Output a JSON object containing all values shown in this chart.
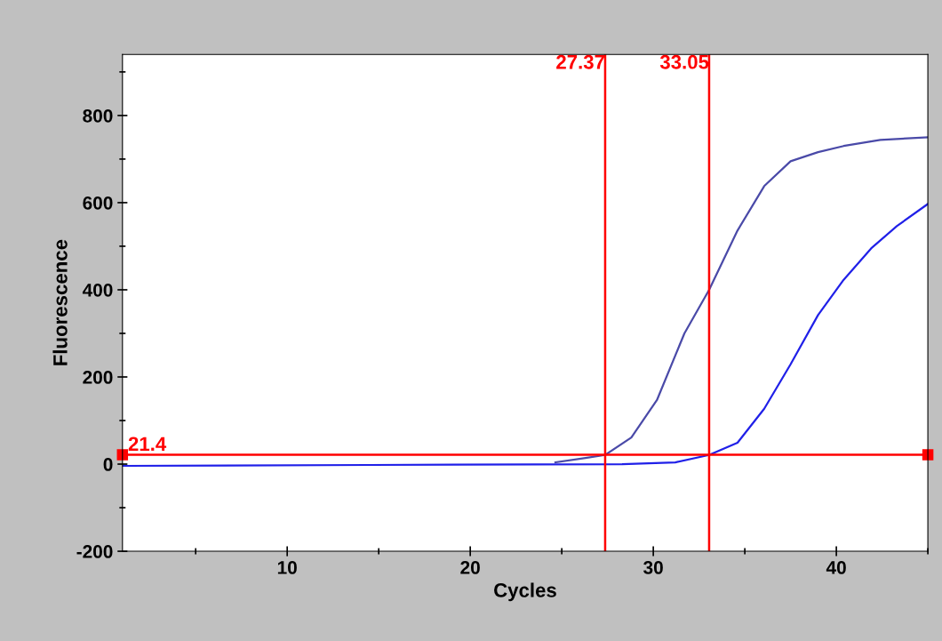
{
  "chart_data": {
    "type": "line",
    "xlabel": "Cycles",
    "ylabel": "Fluorescence",
    "xlim": [
      1,
      45
    ],
    "xticks": [
      10,
      20,
      30,
      40
    ],
    "ylim": [
      -200,
      940
    ],
    "yticks": [
      -200,
      0,
      200,
      400,
      600,
      800
    ],
    "grid": false,
    "legend": false,
    "marker": "none",
    "line_style": "solid",
    "series": [
      {
        "color": "#4a4aa8",
        "x": [
          24.65,
          26.3,
          27.37,
          28.8,
          30.2,
          31.7,
          33.05,
          34.6,
          36.06,
          37.5,
          39.0,
          40.4,
          42.4,
          45
        ],
        "values": [
          4,
          14,
          21,
          61,
          147,
          300,
          400,
          536,
          638,
          695,
          716,
          730,
          744,
          750
        ]
      },
      {
        "color": "#2020e8",
        "x": [
          1,
          14.5,
          28.3,
          31.2,
          33.05,
          34.6,
          36.06,
          37.5,
          39.0,
          40.4,
          41.9,
          43.3,
          45
        ],
        "values": [
          -4,
          -2,
          0,
          4,
          21,
          49,
          127,
          229,
          342,
          423,
          495,
          546,
          597
        ]
      }
    ],
    "ref_lines": [
      {
        "axis": "x",
        "value": 27.37,
        "label": "27.37",
        "color": "#ff0000"
      },
      {
        "axis": "x",
        "value": 33.05,
        "label": "33.05",
        "color": "#ff0000"
      },
      {
        "axis": "y",
        "value": 21.4,
        "label": "21.4",
        "color": "#ff0000"
      }
    ]
  }
}
